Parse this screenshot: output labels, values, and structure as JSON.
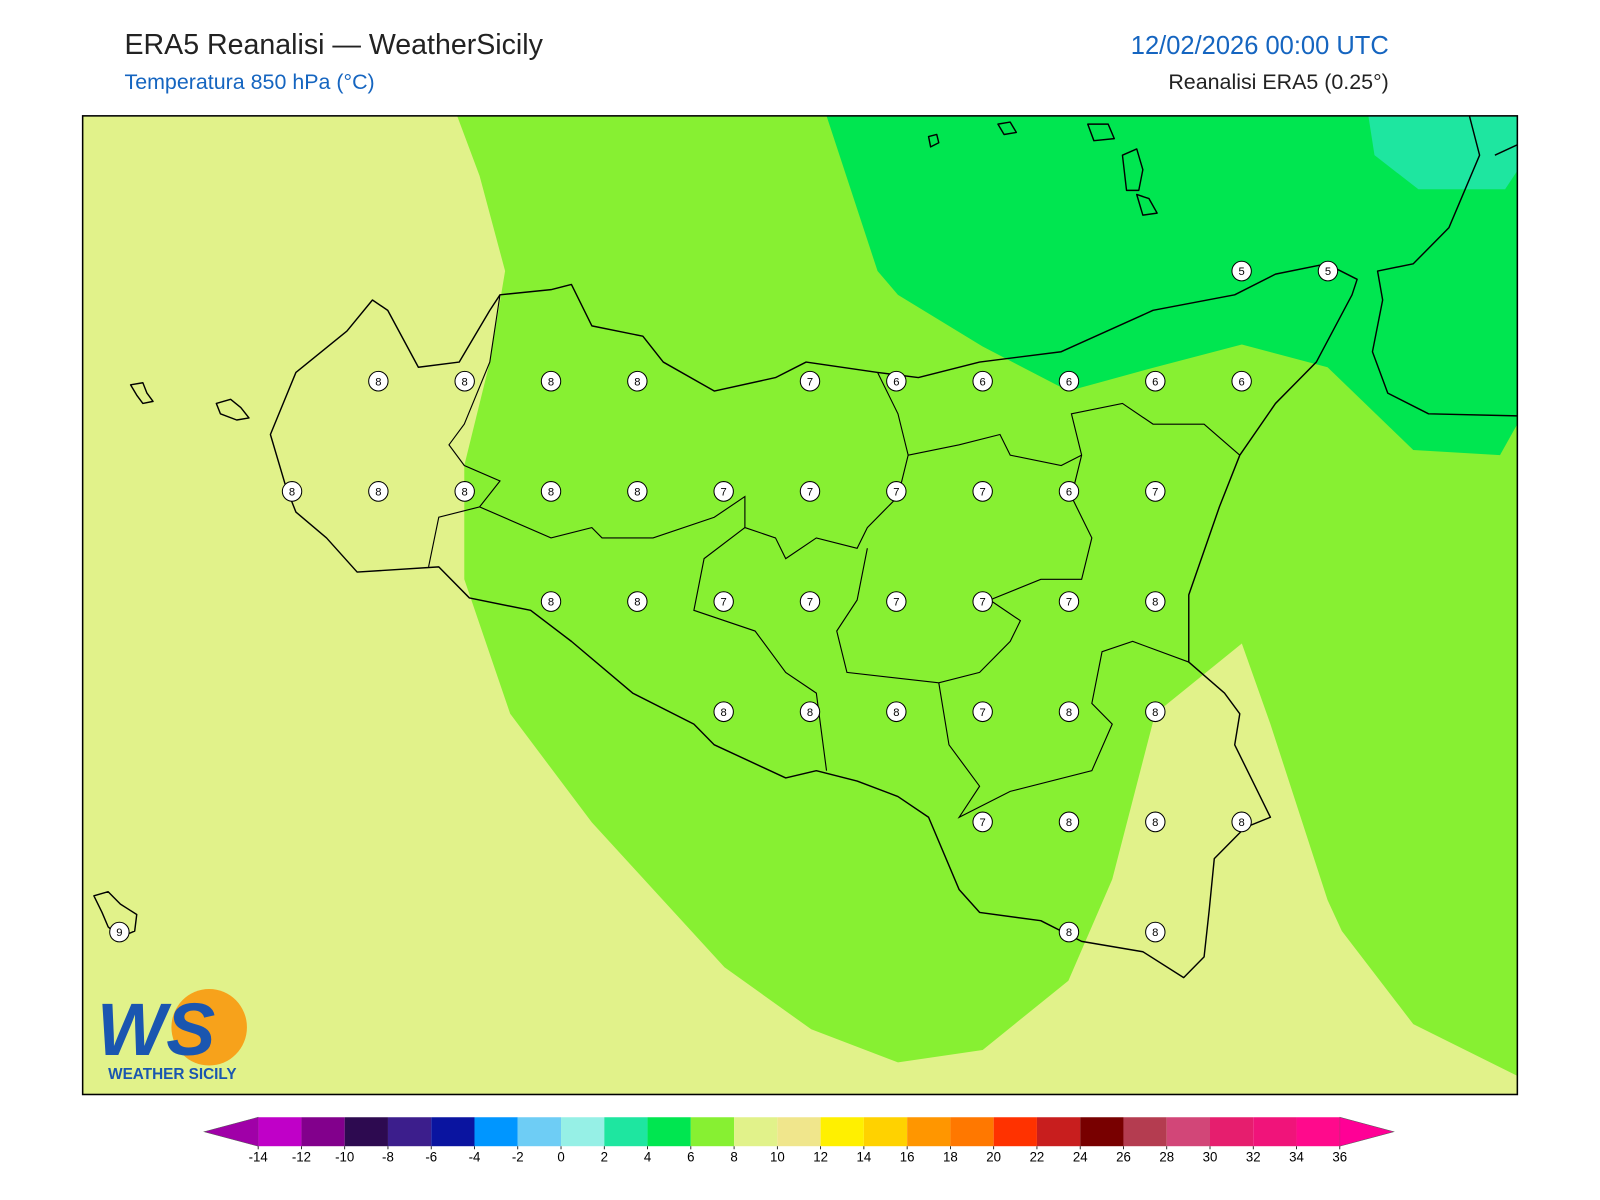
{
  "header": {
    "title": "ERA5 Reanalisi — WeatherSicily",
    "subtitle": "Temperatura 850 hPa (°C)",
    "datetime": "12/02/2026 00:00 UTC",
    "source": "Reanalisi ERA5 (0.25°)"
  },
  "map": {
    "grid": [
      [
        null,
        null,
        null,
        null,
        null,
        null,
        null,
        null,
        null,
        null,
        null,
        null,
        null,
        5,
        5
      ],
      [
        null,
        null,
        null,
        8,
        8,
        8,
        8,
        null,
        7,
        6,
        6,
        6,
        6,
        6,
        null
      ],
      [
        null,
        null,
        8,
        8,
        8,
        8,
        8,
        7,
        7,
        7,
        7,
        6,
        7,
        null,
        null
      ],
      [
        null,
        null,
        null,
        null,
        null,
        8,
        8,
        7,
        7,
        7,
        7,
        7,
        8,
        null,
        null
      ],
      [
        null,
        null,
        null,
        null,
        null,
        null,
        null,
        8,
        8,
        8,
        7,
        8,
        8,
        null,
        null
      ],
      [
        null,
        null,
        null,
        null,
        null,
        null,
        null,
        null,
        null,
        null,
        7,
        8,
        8,
        8,
        null
      ],
      [
        9,
        null,
        null,
        null,
        null,
        null,
        null,
        null,
        null,
        null,
        null,
        8,
        8,
        null,
        null
      ]
    ]
  },
  "colorbar": {
    "ticks": [
      -14,
      -12,
      -10,
      -8,
      -6,
      -4,
      -2,
      0,
      2,
      4,
      6,
      8,
      10,
      12,
      14,
      16,
      18,
      20,
      22,
      24,
      26,
      28,
      30,
      32,
      34,
      36
    ],
    "colors": [
      "#c000c8",
      "#82008c",
      "#2d0a50",
      "#3c1e8c",
      "#0a14a0",
      "#0096ff",
      "#6ecdf5",
      "#96f0e6",
      "#1ee6a0",
      "#00e650",
      "#87f032",
      "#e1f28a",
      "#f0e68c",
      "#fff000",
      "#ffd200",
      "#ff9600",
      "#ff7800",
      "#ff3200",
      "#c81e1e",
      "#780000",
      "#b43c50",
      "#d24678",
      "#e61e6e",
      "#f0147a",
      "#ff0a8c"
    ],
    "under_color": "#a000a8",
    "over_color": "#ff0096"
  },
  "logo": {
    "mark": "WS",
    "name": "WEATHER SICILY"
  }
}
